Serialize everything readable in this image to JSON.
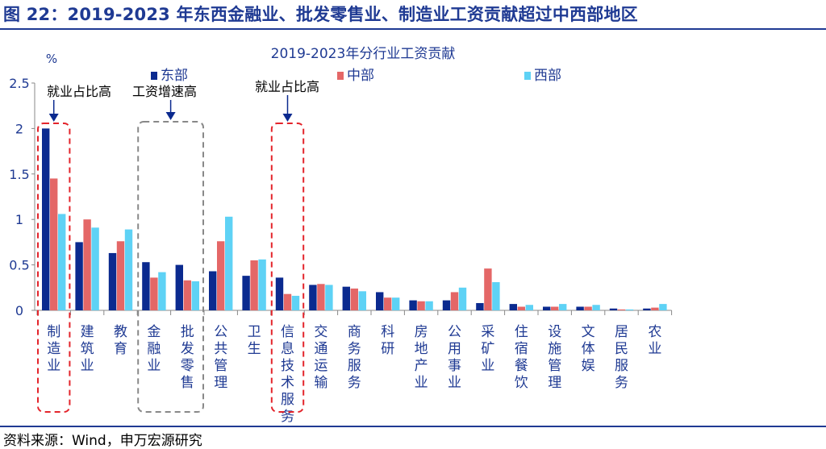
{
  "figure_title": "图 22：2019-2023 年东西金融业、批发零售业、制造业工资贡献超过中西部地区",
  "source": "资料来源：Wind，申万宏源研究",
  "chart_data": {
    "type": "bar",
    "title": "2019-2023年分行业工资贡献",
    "ylabel": "%",
    "ylim": [
      0,
      2.5
    ],
    "yticks": [
      "0",
      "0.5",
      "1",
      "1.5",
      "2",
      "2.5"
    ],
    "categories": [
      "制造业",
      "建筑业",
      "教育",
      "金融业",
      "批发零售",
      "公共管理",
      "卫生",
      "信息技术服务",
      "交通运输",
      "商务服务",
      "科研",
      "房地产业",
      "公用事业",
      "采矿业",
      "住宿餐饮",
      "设施管理",
      "文体娱",
      "居民服务",
      "农业"
    ],
    "series": [
      {
        "name": "东部",
        "color": "#0b2a8f",
        "values": [
          2.0,
          0.75,
          0.63,
          0.53,
          0.5,
          0.43,
          0.38,
          0.36,
          0.28,
          0.26,
          0.2,
          0.11,
          0.11,
          0.08,
          0.07,
          0.04,
          0.04,
          0.02,
          0.02
        ]
      },
      {
        "name": "中部",
        "color": "#e46767",
        "values": [
          1.45,
          1.0,
          0.76,
          0.36,
          0.33,
          0.76,
          0.55,
          0.18,
          0.29,
          0.24,
          0.14,
          0.1,
          0.2,
          0.46,
          0.04,
          0.04,
          0.04,
          0.01,
          0.03
        ]
      },
      {
        "name": "西部",
        "color": "#5ed2f5",
        "values": [
          1.06,
          0.91,
          0.89,
          0.42,
          0.32,
          1.03,
          0.56,
          0.16,
          0.28,
          0.21,
          0.14,
          0.1,
          0.25,
          0.31,
          0.06,
          0.07,
          0.06,
          0.01,
          0.07
        ]
      }
    ],
    "annotations": [
      {
        "text": "就业占比高",
        "color": "#0b2a8f"
      },
      {
        "text": "工资增速高",
        "color": "#0b2a8f"
      },
      {
        "text": "就业占比高",
        "color": "#0b2a8f"
      }
    ],
    "grid": false,
    "legend_position": "top"
  }
}
